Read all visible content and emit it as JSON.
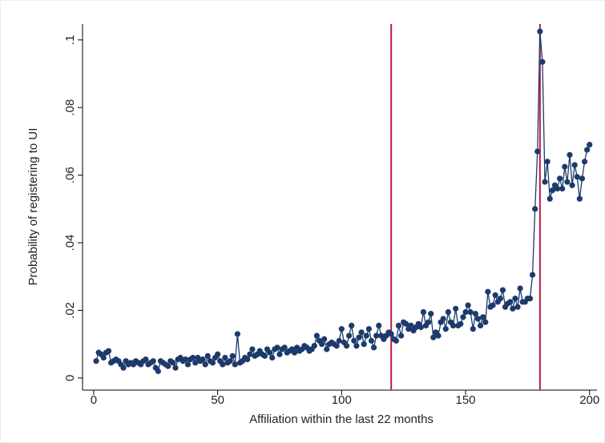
{
  "chart_data": {
    "type": "line",
    "x_label": "Affiliation within the last 22 months",
    "y_label": "Probability of registering to UI",
    "x": [
      1,
      2,
      3,
      4,
      5,
      6,
      7,
      8,
      9,
      10,
      11,
      12,
      13,
      14,
      15,
      16,
      17,
      18,
      19,
      20,
      21,
      22,
      23,
      24,
      25,
      26,
      27,
      28,
      29,
      30,
      31,
      32,
      33,
      34,
      35,
      36,
      37,
      38,
      39,
      40,
      41,
      42,
      43,
      44,
      45,
      46,
      47,
      48,
      49,
      50,
      51,
      52,
      53,
      54,
      55,
      56,
      57,
      58,
      59,
      60,
      61,
      62,
      63,
      64,
      65,
      66,
      67,
      68,
      69,
      70,
      71,
      72,
      73,
      74,
      75,
      76,
      77,
      78,
      79,
      80,
      81,
      82,
      83,
      84,
      85,
      86,
      87,
      88,
      89,
      90,
      91,
      92,
      93,
      94,
      95,
      96,
      97,
      98,
      99,
      100,
      101,
      102,
      103,
      104,
      105,
      106,
      107,
      108,
      109,
      110,
      111,
      112,
      113,
      114,
      115,
      116,
      117,
      118,
      119,
      120,
      121,
      122,
      123,
      124,
      125,
      126,
      127,
      128,
      129,
      130,
      131,
      132,
      133,
      134,
      135,
      136,
      137,
      138,
      139,
      140,
      141,
      142,
      143,
      144,
      145,
      146,
      147,
      148,
      149,
      150,
      151,
      152,
      153,
      154,
      155,
      156,
      157,
      158,
      159,
      160,
      161,
      162,
      163,
      164,
      165,
      166,
      167,
      168,
      169,
      170,
      171,
      172,
      173,
      174,
      175,
      176,
      177,
      178,
      179,
      180,
      181,
      182,
      183,
      184,
      185,
      186,
      187,
      188,
      189,
      190,
      191,
      192,
      193,
      194,
      195,
      196,
      197,
      198,
      199,
      200
    ],
    "series": [
      {
        "color": "#1c3a6b",
        "values": [
          0.005,
          0.0075,
          0.007,
          0.006,
          0.0075,
          0.008,
          0.0045,
          0.005,
          0.0055,
          0.005,
          0.004,
          0.003,
          0.005,
          0.004,
          0.0045,
          0.004,
          0.005,
          0.0045,
          0.004,
          0.005,
          0.0055,
          0.004,
          0.0045,
          0.005,
          0.003,
          0.002,
          0.005,
          0.0045,
          0.004,
          0.0035,
          0.005,
          0.0045,
          0.003,
          0.0055,
          0.006,
          0.005,
          0.0055,
          0.004,
          0.0055,
          0.006,
          0.0045,
          0.006,
          0.005,
          0.0055,
          0.004,
          0.0065,
          0.005,
          0.0045,
          0.006,
          0.007,
          0.005,
          0.004,
          0.006,
          0.0045,
          0.005,
          0.0065,
          0.004,
          0.013,
          0.0045,
          0.005,
          0.006,
          0.0055,
          0.007,
          0.0085,
          0.0065,
          0.007,
          0.008,
          0.007,
          0.0065,
          0.0085,
          0.0075,
          0.006,
          0.0085,
          0.009,
          0.007,
          0.0085,
          0.009,
          0.0075,
          0.008,
          0.0085,
          0.0075,
          0.009,
          0.008,
          0.0085,
          0.0095,
          0.009,
          0.008,
          0.0085,
          0.0095,
          0.0125,
          0.011,
          0.01,
          0.0115,
          0.0085,
          0.01,
          0.0105,
          0.01,
          0.0095,
          0.011,
          0.0145,
          0.0105,
          0.0095,
          0.0125,
          0.0155,
          0.011,
          0.0095,
          0.012,
          0.0135,
          0.01,
          0.0125,
          0.0145,
          0.011,
          0.009,
          0.0125,
          0.0155,
          0.0125,
          0.0115,
          0.0125,
          0.0135,
          0.013,
          0.0115,
          0.011,
          0.0155,
          0.0125,
          0.0165,
          0.016,
          0.0145,
          0.0155,
          0.014,
          0.015,
          0.016,
          0.015,
          0.0195,
          0.0155,
          0.0165,
          0.019,
          0.012,
          0.0135,
          0.0125,
          0.0165,
          0.0175,
          0.0145,
          0.0195,
          0.0165,
          0.0155,
          0.0205,
          0.0155,
          0.016,
          0.018,
          0.0195,
          0.0215,
          0.0195,
          0.0145,
          0.019,
          0.0175,
          0.0155,
          0.018,
          0.0165,
          0.0255,
          0.021,
          0.0215,
          0.0245,
          0.0225,
          0.0235,
          0.026,
          0.021,
          0.022,
          0.0225,
          0.0205,
          0.0235,
          0.021,
          0.0265,
          0.0225,
          0.0225,
          0.0235,
          0.0235,
          0.0305,
          0.05,
          0.067,
          0.1025,
          0.0935,
          0.058,
          0.064,
          0.053,
          0.0555,
          0.057,
          0.056,
          0.059,
          0.056,
          0.0625,
          0.058,
          0.066,
          0.057,
          0.063,
          0.0595,
          0.053,
          0.059,
          0.064,
          0.0675,
          0.069
        ]
      }
    ],
    "reference_lines": {
      "x": [
        120,
        180
      ],
      "color": "#c0184a"
    },
    "xlim": [
      -4.5,
      203
    ],
    "xticks": [
      0,
      50,
      100,
      150,
      200
    ],
    "ylim": [
      -0.0036,
      0.1047
    ],
    "yticks": [
      0,
      {
        "value": 0.02,
        "label": ".02"
      },
      {
        "value": 0.04,
        "label": ".04"
      },
      {
        "value": 0.06,
        "label": ".06"
      },
      {
        "value": 0.08,
        "label": ".08"
      },
      {
        "value": 0.1,
        "label": ".1"
      }
    ],
    "grid": false
  }
}
